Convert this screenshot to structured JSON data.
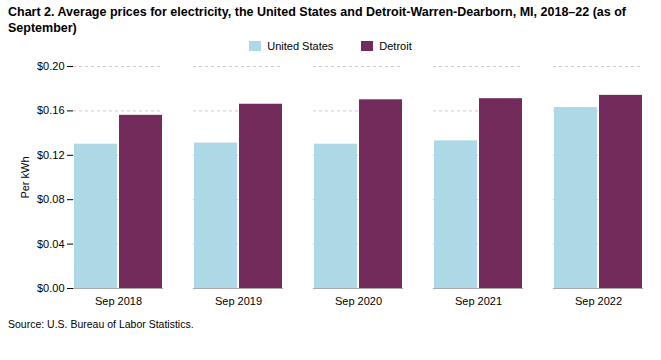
{
  "chart_data": {
    "type": "bar",
    "title": "Chart 2. Average prices for electricity, the United States and Detroit-Warren-Dearborn, MI, 2018–22 (as of September)",
    "source": "Source: U.S. Bureau of Labor Statistics.",
    "ylabel": "Per kWh",
    "categories": [
      "Sep 2018",
      "Sep 2019",
      "Sep 2020",
      "Sep 2021",
      "Sep 2022"
    ],
    "series": [
      {
        "name": "United States",
        "color": "#ADD8E6",
        "values": [
          0.13,
          0.131,
          0.13,
          0.133,
          0.163
        ]
      },
      {
        "name": "Detroit",
        "color": "#722B5B",
        "values": [
          0.156,
          0.166,
          0.17,
          0.171,
          0.174
        ]
      }
    ],
    "ylim": [
      0,
      0.2
    ],
    "yticks": [
      {
        "value": 0.0,
        "label": "$0.00"
      },
      {
        "value": 0.04,
        "label": "$0.04"
      },
      {
        "value": 0.08,
        "label": "$0.08"
      },
      {
        "value": 0.12,
        "label": "$0.12"
      },
      {
        "value": 0.16,
        "label": "$0.16"
      },
      {
        "value": 0.2,
        "label": "$0.20"
      }
    ],
    "grid": true,
    "legend": "top"
  }
}
